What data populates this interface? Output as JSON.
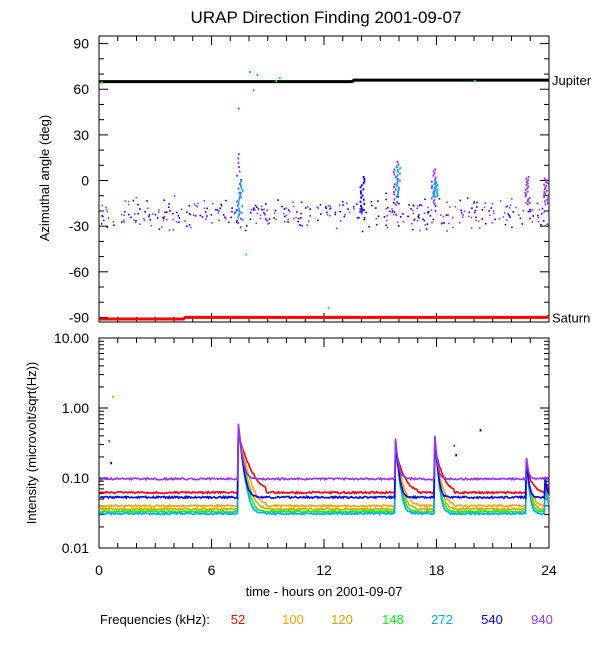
{
  "chart_data": [
    {
      "type": "scatter",
      "panel": "top",
      "title": "URAP Direction Finding  2001-09-07",
      "ylabel": "Azimuthal angle (deg)",
      "xlim": [
        0,
        24
      ],
      "ylim": [
        -93,
        95
      ],
      "yticks": [
        "90",
        "60",
        "30",
        "0",
        "-30",
        "-60",
        "-90"
      ],
      "ytick_values": [
        90,
        60,
        30,
        0,
        -30,
        -60,
        -90
      ],
      "reference_lines": [
        {
          "name": "Jupiter",
          "color": "#000000",
          "x": [
            0,
            13.5,
            13.6,
            24
          ],
          "y": [
            65,
            65,
            66,
            66
          ]
        },
        {
          "name": "Saturn",
          "color": "#ff0000",
          "x": [
            0,
            4.5,
            4.6,
            23.9,
            24
          ],
          "y": [
            -91,
            -91,
            -90,
            -90,
            -89
          ]
        }
      ],
      "scatter_noise": {
        "y_center": -21,
        "y_spread": 8,
        "n_points": 400,
        "colors": [
          "#0000ff",
          "#9933ff"
        ]
      },
      "bursts": [
        {
          "x": 7.4,
          "y_min": -30,
          "y_max": 18,
          "color": "#9933ff"
        },
        {
          "x": 7.5,
          "y_min": -25,
          "y_max": 0,
          "color": "#00aaff"
        },
        {
          "x": 14.0,
          "y_min": -20,
          "y_max": 3,
          "color": "#0000ff"
        },
        {
          "x": 15.8,
          "y_min": -15,
          "y_max": 13,
          "color": "#9933ff"
        },
        {
          "x": 15.9,
          "y_min": -10,
          "y_max": 10,
          "color": "#00aaff"
        },
        {
          "x": 17.8,
          "y_min": -15,
          "y_max": 8,
          "color": "#9933ff"
        },
        {
          "x": 17.9,
          "y_min": -10,
          "y_max": 0,
          "color": "#00aaff"
        },
        {
          "x": 22.8,
          "y_min": -15,
          "y_max": 3,
          "color": "#9933ff"
        },
        {
          "x": 23.8,
          "y_min": -15,
          "y_max": 2,
          "color": "#9933ff"
        }
      ],
      "outliers": [
        {
          "x": 0.1,
          "y": 65,
          "color": "#00ff00"
        },
        {
          "x": 7.4,
          "y": 48,
          "color": "#9933ff"
        },
        {
          "x": 7.8,
          "y": -48,
          "color": "#00ff00"
        },
        {
          "x": 8.0,
          "y": 72,
          "color": "#00aaff"
        },
        {
          "x": 8.2,
          "y": 60,
          "color": "#00aaff"
        },
        {
          "x": 8.4,
          "y": 70,
          "color": "#00aaff"
        },
        {
          "x": 9.4,
          "y": 66,
          "color": "#00ff00"
        },
        {
          "x": 9.6,
          "y": 68,
          "color": "#00ff00"
        },
        {
          "x": 12.2,
          "y": -83,
          "color": "#00ff00"
        },
        {
          "x": 20.0,
          "y": 66,
          "color": "#00ff00"
        }
      ],
      "right_labels": [
        {
          "text": "Jupiter",
          "y": 66
        },
        {
          "text": "Saturn",
          "y": -90
        }
      ]
    },
    {
      "type": "line",
      "panel": "bottom",
      "ylabel": "Intensity (microvolt/sqrt(Hz))",
      "xlabel": "time - hours on 2001-09-07",
      "xlim": [
        0,
        24
      ],
      "ylim_log10": [
        -2,
        1
      ],
      "yticks": [
        "10.00",
        "1.00",
        "0.10",
        "0.01"
      ],
      "ytick_values": [
        10,
        1,
        0.1,
        0.01
      ],
      "xticks": [
        "0",
        "6",
        "12",
        "18",
        "24"
      ],
      "xtick_values": [
        0,
        6,
        12,
        18,
        24
      ],
      "series": [
        {
          "name": "52",
          "color": "#ff0000",
          "baseline": 0.062
        },
        {
          "name": "100",
          "color": "#ffa500",
          "baseline": 0.04
        },
        {
          "name": "120",
          "color": "#ccaa00",
          "baseline": 0.036
        },
        {
          "name": "148",
          "color": "#00ff00",
          "baseline": 0.033
        },
        {
          "name": "272",
          "color": "#00aaff",
          "baseline": 0.031
        },
        {
          "name": "540",
          "color": "#0000ff",
          "baseline": 0.053
        },
        {
          "name": "940",
          "color": "#9933ff",
          "baseline": 0.097
        }
      ],
      "bursts": [
        {
          "t": 7.4,
          "peak": 0.75,
          "decay_h": 0.5
        },
        {
          "t": 15.8,
          "peak": 0.4,
          "decay_h": 0.4
        },
        {
          "t": 17.9,
          "peak": 0.45,
          "decay_h": 0.35
        },
        {
          "t": 22.8,
          "peak": 0.2,
          "decay_h": 0.3
        },
        {
          "t": 23.8,
          "peak": 0.1,
          "decay_h": 0.3
        }
      ],
      "outliers": [
        {
          "x": 0.5,
          "y": 0.35,
          "color": "#9933ff"
        },
        {
          "x": 0.6,
          "y": 0.17,
          "color": "#0000ff"
        },
        {
          "x": 0.7,
          "y": 1.5,
          "color": "#ffa500"
        },
        {
          "x": 18.9,
          "y": 0.3,
          "color": "#9933ff"
        },
        {
          "x": 19.0,
          "y": 0.22,
          "color": "#0000ff"
        },
        {
          "x": 20.3,
          "y": 0.5,
          "color": "#0000ff"
        }
      ]
    }
  ],
  "legend": {
    "label": "Frequencies (kHz):",
    "items": [
      {
        "text": "52",
        "color": "#ff0000"
      },
      {
        "text": "100",
        "color": "#ffa500"
      },
      {
        "text": "120",
        "color": "#ccaa00"
      },
      {
        "text": "148",
        "color": "#00ff00"
      },
      {
        "text": "272",
        "color": "#00aaff"
      },
      {
        "text": "540",
        "color": "#0000ff"
      },
      {
        "text": "940",
        "color": "#9933ff"
      }
    ]
  }
}
